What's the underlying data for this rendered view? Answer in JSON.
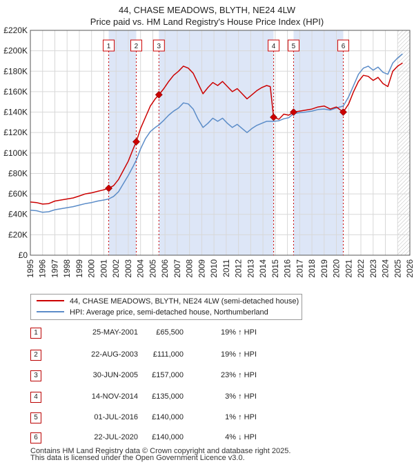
{
  "title": {
    "line1": "44, CHASE MEADOWS, BLYTH, NE24 4LW",
    "line2": "Price paid vs. HM Land Registry's House Price Index (HPI)"
  },
  "colors": {
    "property": "#cc0000",
    "hpi": "#5b8cc8",
    "band": "#dde6f7",
    "grid": "#d8d8d8",
    "marker_line": "#cc0000"
  },
  "chart_data": {
    "type": "line",
    "x_range": [
      1995,
      2026
    ],
    "ylim": [
      0,
      220000
    ],
    "y_ticks": [
      {
        "value": 0,
        "label": "£0"
      },
      {
        "value": 20000,
        "label": "£20K"
      },
      {
        "value": 40000,
        "label": "£40K"
      },
      {
        "value": 60000,
        "label": "£60K"
      },
      {
        "value": 80000,
        "label": "£80K"
      },
      {
        "value": 100000,
        "label": "£100K"
      },
      {
        "value": 120000,
        "label": "£120K"
      },
      {
        "value": 140000,
        "label": "£140K"
      },
      {
        "value": 160000,
        "label": "£160K"
      },
      {
        "value": 180000,
        "label": "£180K"
      },
      {
        "value": 200000,
        "label": "£200K"
      },
      {
        "value": 220000,
        "label": "£220K"
      }
    ],
    "x_ticks": [
      "1995",
      "1996",
      "1997",
      "1998",
      "1999",
      "2000",
      "2001",
      "2002",
      "2003",
      "2004",
      "2005",
      "2006",
      "2007",
      "2008",
      "2009",
      "2010",
      "2011",
      "2012",
      "2013",
      "2014",
      "2015",
      "2016",
      "2017",
      "2018",
      "2019",
      "2020",
      "2021",
      "2022",
      "2023",
      "2024",
      "2025",
      "2026"
    ],
    "shaded_bands": [
      [
        2001.4,
        2003.65
      ],
      [
        2005.5,
        2014.87
      ],
      [
        2016.5,
        2020.56
      ]
    ],
    "forecast_start": 2025.0,
    "series": [
      {
        "name": "44, CHASE MEADOWS, BLYTH, NE24 4LW (semi-detached house)",
        "points": [
          [
            1995.0,
            52000
          ],
          [
            1995.5,
            51500
          ],
          [
            1996.0,
            50000
          ],
          [
            1996.5,
            50500
          ],
          [
            1997.0,
            53000
          ],
          [
            1997.5,
            54000
          ],
          [
            1998.0,
            55000
          ],
          [
            1998.5,
            56000
          ],
          [
            1999.0,
            58000
          ],
          [
            1999.5,
            60000
          ],
          [
            2000.0,
            61000
          ],
          [
            2000.5,
            62500
          ],
          [
            2001.0,
            64000
          ],
          [
            2001.4,
            65500
          ],
          [
            2001.8,
            68000
          ],
          [
            2002.2,
            74000
          ],
          [
            2002.6,
            83000
          ],
          [
            2003.0,
            92000
          ],
          [
            2003.4,
            104000
          ],
          [
            2003.65,
            111000
          ],
          [
            2004.0,
            124000
          ],
          [
            2004.4,
            135000
          ],
          [
            2004.8,
            146000
          ],
          [
            2005.2,
            153000
          ],
          [
            2005.5,
            157000
          ],
          [
            2005.9,
            163000
          ],
          [
            2006.3,
            170000
          ],
          [
            2006.7,
            176000
          ],
          [
            2007.1,
            180000
          ],
          [
            2007.5,
            185000
          ],
          [
            2007.9,
            183000
          ],
          [
            2008.3,
            178000
          ],
          [
            2008.7,
            168000
          ],
          [
            2009.1,
            158000
          ],
          [
            2009.5,
            164000
          ],
          [
            2009.9,
            169000
          ],
          [
            2010.3,
            166000
          ],
          [
            2010.7,
            170000
          ],
          [
            2011.1,
            165000
          ],
          [
            2011.5,
            160000
          ],
          [
            2011.9,
            163000
          ],
          [
            2012.3,
            158000
          ],
          [
            2012.7,
            153000
          ],
          [
            2013.1,
            157000
          ],
          [
            2013.5,
            161000
          ],
          [
            2013.9,
            164000
          ],
          [
            2014.3,
            166000
          ],
          [
            2014.6,
            165000
          ],
          [
            2014.87,
            135000
          ],
          [
            2015.3,
            133000
          ],
          [
            2015.7,
            138000
          ],
          [
            2016.1,
            137000
          ],
          [
            2016.5,
            140000
          ],
          [
            2017.0,
            141000
          ],
          [
            2017.5,
            142000
          ],
          [
            2018.0,
            143000
          ],
          [
            2018.5,
            145000
          ],
          [
            2019.0,
            146000
          ],
          [
            2019.5,
            143000
          ],
          [
            2020.0,
            145000
          ],
          [
            2020.56,
            140000
          ],
          [
            2021.0,
            148000
          ],
          [
            2021.4,
            160000
          ],
          [
            2021.8,
            170000
          ],
          [
            2022.2,
            176000
          ],
          [
            2022.6,
            175000
          ],
          [
            2023.0,
            171000
          ],
          [
            2023.4,
            174000
          ],
          [
            2023.8,
            168000
          ],
          [
            2024.2,
            165000
          ],
          [
            2024.6,
            180000
          ],
          [
            2025.0,
            185000
          ],
          [
            2025.4,
            188000
          ]
        ]
      },
      {
        "name": "HPI: Average price, semi-detached house, Northumberland",
        "points": [
          [
            1995.0,
            44000
          ],
          [
            1995.5,
            43500
          ],
          [
            1996.0,
            42000
          ],
          [
            1996.5,
            42500
          ],
          [
            1997.0,
            44500
          ],
          [
            1997.5,
            45500
          ],
          [
            1998.0,
            46500
          ],
          [
            1998.5,
            47500
          ],
          [
            1999.0,
            49000
          ],
          [
            1999.5,
            50500
          ],
          [
            2000.0,
            51500
          ],
          [
            2000.5,
            53000
          ],
          [
            2001.0,
            54000
          ],
          [
            2001.4,
            55000
          ],
          [
            2001.8,
            57500
          ],
          [
            2002.2,
            62000
          ],
          [
            2002.6,
            70000
          ],
          [
            2003.0,
            78000
          ],
          [
            2003.4,
            87000
          ],
          [
            2003.65,
            93000
          ],
          [
            2004.0,
            104000
          ],
          [
            2004.4,
            114000
          ],
          [
            2004.8,
            121000
          ],
          [
            2005.2,
            125000
          ],
          [
            2005.5,
            127500
          ],
          [
            2005.9,
            132000
          ],
          [
            2006.3,
            137000
          ],
          [
            2006.7,
            141000
          ],
          [
            2007.1,
            144000
          ],
          [
            2007.5,
            149000
          ],
          [
            2007.9,
            148000
          ],
          [
            2008.3,
            143000
          ],
          [
            2008.7,
            133000
          ],
          [
            2009.1,
            125000
          ],
          [
            2009.5,
            129000
          ],
          [
            2009.9,
            134000
          ],
          [
            2010.3,
            131000
          ],
          [
            2010.7,
            134000
          ],
          [
            2011.1,
            129000
          ],
          [
            2011.5,
            125000
          ],
          [
            2011.9,
            128000
          ],
          [
            2012.3,
            124000
          ],
          [
            2012.7,
            120000
          ],
          [
            2013.1,
            124000
          ],
          [
            2013.5,
            127000
          ],
          [
            2013.9,
            129000
          ],
          [
            2014.3,
            131000
          ],
          [
            2014.6,
            131000
          ],
          [
            2014.87,
            131000
          ],
          [
            2015.3,
            131500
          ],
          [
            2015.7,
            133500
          ],
          [
            2016.1,
            134500
          ],
          [
            2016.5,
            138500
          ],
          [
            2017.0,
            139500
          ],
          [
            2017.5,
            140000
          ],
          [
            2018.0,
            141000
          ],
          [
            2018.5,
            142500
          ],
          [
            2019.0,
            143000
          ],
          [
            2019.5,
            142000
          ],
          [
            2020.0,
            144000
          ],
          [
            2020.56,
            146000
          ],
          [
            2021.0,
            155000
          ],
          [
            2021.4,
            166000
          ],
          [
            2021.8,
            177000
          ],
          [
            2022.2,
            183000
          ],
          [
            2022.6,
            185000
          ],
          [
            2023.0,
            181000
          ],
          [
            2023.4,
            184000
          ],
          [
            2023.8,
            179000
          ],
          [
            2024.2,
            177000
          ],
          [
            2024.6,
            188000
          ],
          [
            2025.0,
            193000
          ],
          [
            2025.4,
            197000
          ]
        ]
      }
    ],
    "markers": [
      {
        "label": "1",
        "x": 2001.4,
        "value": 65500
      },
      {
        "label": "2",
        "x": 2003.65,
        "value": 111000
      },
      {
        "label": "3",
        "x": 2005.5,
        "value": 157000
      },
      {
        "label": "4",
        "x": 2014.87,
        "value": 135000
      },
      {
        "label": "5",
        "x": 2016.5,
        "value": 140000
      },
      {
        "label": "6",
        "x": 2020.56,
        "value": 140000
      }
    ]
  },
  "legend": {
    "property_label": "44, CHASE MEADOWS, BLYTH, NE24 4LW (semi-detached house)",
    "hpi_label": "HPI: Average price, semi-detached house, Northumberland"
  },
  "sales": [
    {
      "num": "1",
      "date": "25-MAY-2001",
      "price": "£65,500",
      "hpi": "19% ↑ HPI"
    },
    {
      "num": "2",
      "date": "22-AUG-2003",
      "price": "£111,000",
      "hpi": "19% ↑ HPI"
    },
    {
      "num": "3",
      "date": "30-JUN-2005",
      "price": "£157,000",
      "hpi": "23% ↑ HPI"
    },
    {
      "num": "4",
      "date": "14-NOV-2014",
      "price": "£135,000",
      "hpi": "3% ↑ HPI"
    },
    {
      "num": "5",
      "date": "01-JUL-2016",
      "price": "£140,000",
      "hpi": "1% ↑ HPI"
    },
    {
      "num": "6",
      "date": "22-JUL-2020",
      "price": "£140,000",
      "hpi": "4% ↓ HPI"
    }
  ],
  "footer": {
    "line1": "Contains HM Land Registry data © Crown copyright and database right 2025.",
    "line2": "This data is licensed under the Open Government Licence v3.0."
  }
}
